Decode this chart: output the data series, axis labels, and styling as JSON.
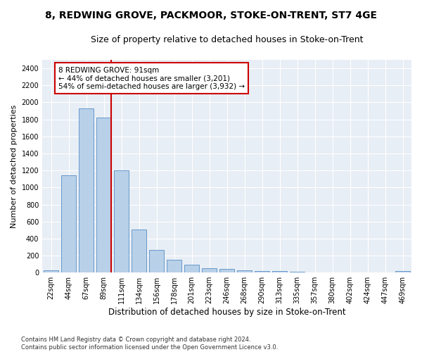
{
  "title1": "8, REDWING GROVE, PACKMOOR, STOKE-ON-TRENT, ST7 4GE",
  "title2": "Size of property relative to detached houses in Stoke-on-Trent",
  "xlabel": "Distribution of detached houses by size in Stoke-on-Trent",
  "ylabel": "Number of detached properties",
  "footnote": "Contains HM Land Registry data © Crown copyright and database right 2024.\nContains public sector information licensed under the Open Government Licence v3.0.",
  "categories": [
    "22sqm",
    "44sqm",
    "67sqm",
    "89sqm",
    "111sqm",
    "134sqm",
    "156sqm",
    "178sqm",
    "201sqm",
    "223sqm",
    "246sqm",
    "268sqm",
    "290sqm",
    "313sqm",
    "335sqm",
    "357sqm",
    "380sqm",
    "402sqm",
    "424sqm",
    "447sqm",
    "469sqm"
  ],
  "values": [
    30,
    1140,
    1930,
    1820,
    1200,
    510,
    265,
    150,
    90,
    50,
    43,
    30,
    20,
    15,
    10,
    5,
    5,
    5,
    5,
    5,
    20
  ],
  "bar_color": "#b8d0e8",
  "bar_edge_color": "#6699cc",
  "red_line_index": 3,
  "annotation_line1": "8 REDWING GROVE: 91sqm",
  "annotation_line2": "← 44% of detached houses are smaller (3,201)",
  "annotation_line3": "54% of semi-detached houses are larger (3,932) →",
  "ylim": [
    0,
    2500
  ],
  "yticks": [
    0,
    200,
    400,
    600,
    800,
    1000,
    1200,
    1400,
    1600,
    1800,
    2000,
    2200,
    2400
  ],
  "bg_color": "#e8eef5",
  "grid_color": "#ffffff",
  "title1_fontsize": 10,
  "title2_fontsize": 9,
  "xlabel_fontsize": 8.5,
  "ylabel_fontsize": 8,
  "tick_fontsize": 7,
  "red_line_color": "#cc0000",
  "annotation_box_edgecolor": "#cc0000",
  "footnote_fontsize": 6
}
